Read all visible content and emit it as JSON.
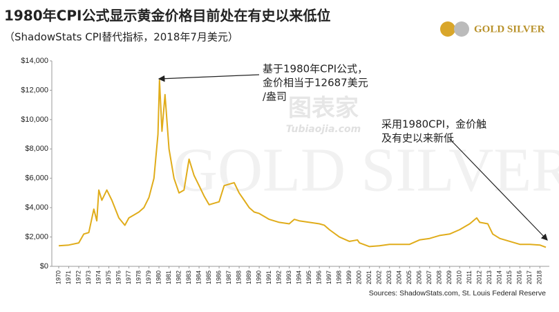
{
  "chart_data": {
    "type": "line",
    "title": "1980年CPI公式显示黄金价格目前处在有史以来低位",
    "subtitle": "（ShadowStats CPI替代指标，2018年7月美元）",
    "source": "Sources: ShadowStats.com, St. Louis Federal Reserve",
    "logo": "GOLD SILVER",
    "watermark": [
      "图表家",
      "Tubiaojia.com"
    ],
    "annotations": [
      {
        "lines": [
          "基于1980年CPI公式，",
          "金价相当于12687美元",
          "/盎司"
        ]
      },
      {
        "lines": [
          "采用1980CPI，金价触",
          "及有史以来新低"
        ]
      }
    ],
    "series": [
      {
        "name": "Gold",
        "color": "#e0ac1a",
        "x": [
          1970,
          1971,
          1972,
          1972.5,
          1973,
          1973.5,
          1973.8,
          1974,
          1974.3,
          1974.8,
          1975.3,
          1976,
          1976.6,
          1977,
          1977.5,
          1978,
          1978.5,
          1979,
          1979.5,
          1979.9,
          1980.05,
          1980.3,
          1980.6,
          1981,
          1981.5,
          1982,
          1982.5,
          1983,
          1983.5,
          1984,
          1984.5,
          1985,
          1985.5,
          1986,
          1986.5,
          1987,
          1987.5,
          1988,
          1988.5,
          1989,
          1989.5,
          1990,
          1990.5,
          1991,
          1992,
          1993,
          1993.5,
          1994,
          1995,
          1996,
          1996.5,
          1997,
          1998,
          1999,
          1999.8,
          2000,
          2001,
          2002,
          2003,
          2004,
          2005,
          2006,
          2007,
          2008,
          2009,
          2010,
          2011,
          2011.7,
          2012,
          2012.8,
          2013.3,
          2014,
          2015,
          2016,
          2017,
          2018,
          2018.6
        ],
        "values": [
          1400,
          1450,
          1600,
          2200,
          2300,
          3900,
          3100,
          5200,
          4500,
          5200,
          4500,
          3300,
          2800,
          3300,
          3500,
          3700,
          4000,
          4700,
          6000,
          9000,
          12687,
          9200,
          11700,
          8000,
          6000,
          5000,
          5200,
          7300,
          6200,
          5500,
          4800,
          4200,
          4300,
          4400,
          5500,
          5600,
          5700,
          5000,
          4500,
          4000,
          3700,
          3600,
          3400,
          3200,
          3000,
          2900,
          3200,
          3100,
          3000,
          2900,
          2800,
          2500,
          2000,
          1700,
          1800,
          1600,
          1350,
          1400,
          1500,
          1500,
          1500,
          1800,
          1900,
          2100,
          2200,
          2500,
          2900,
          3300,
          3000,
          2900,
          2200,
          1900,
          1700,
          1500,
          1500,
          1450,
          1300
        ]
      }
    ],
    "xlim": [
      1970,
      2018.6
    ],
    "xticks": [
      1970,
      1971,
      1972,
      1973,
      1974,
      1975,
      1976,
      1977,
      1978,
      1979,
      1980,
      1981,
      1982,
      1983,
      1984,
      1985,
      1986,
      1987,
      1988,
      1989,
      1990,
      1991,
      1992,
      1993,
      1994,
      1995,
      1996,
      1997,
      1998,
      1999,
      2000,
      2001,
      2002,
      2003,
      2004,
      2005,
      2006,
      2007,
      2008,
      2009,
      2010,
      2011,
      2012,
      2013,
      2014,
      2015,
      2016,
      2017,
      2018
    ],
    "ylim": [
      0,
      14000
    ],
    "yticks": [
      {
        "value": 0,
        "label": "$0"
      },
      {
        "value": 2000,
        "label": "$2,000"
      },
      {
        "value": 4000,
        "label": "$4,000"
      },
      {
        "value": 6000,
        "label": "$6,000"
      },
      {
        "value": 8000,
        "label": "$8,000"
      },
      {
        "value": 10000,
        "label": "$10,000"
      },
      {
        "value": 12000,
        "label": "$12,000"
      },
      {
        "value": 14000,
        "label": "$14,000"
      }
    ],
    "grid": false
  }
}
